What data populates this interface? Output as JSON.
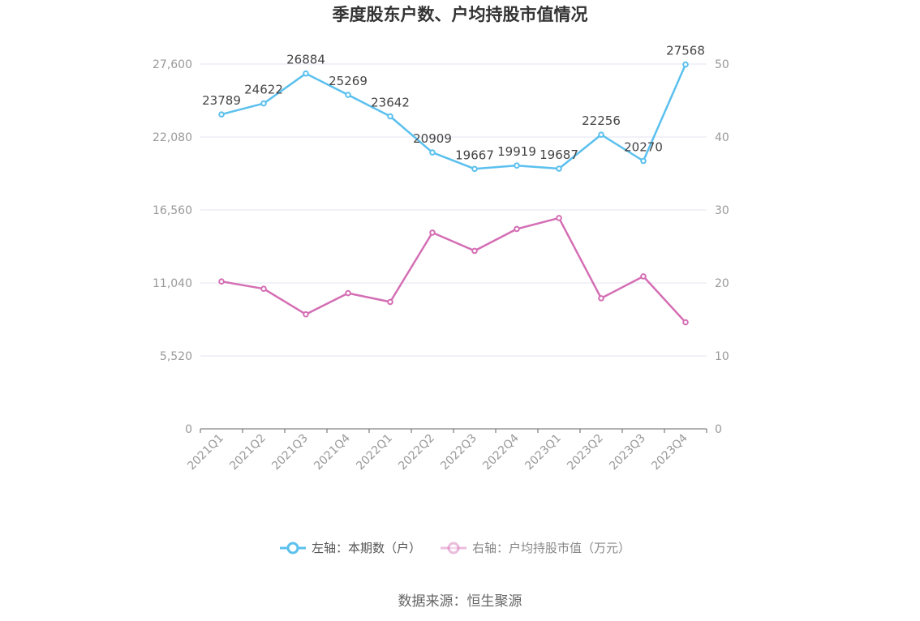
{
  "chart_data": {
    "type": "line",
    "title": "季度股东户数、户均持股市值情况",
    "categories": [
      "2021Q1",
      "2021Q2",
      "2021Q3",
      "2021Q4",
      "2022Q1",
      "2022Q2",
      "2022Q3",
      "2022Q4",
      "2023Q1",
      "2023Q2",
      "2023Q3",
      "2023Q4"
    ],
    "series": [
      {
        "name": "左轴：本期数（户）",
        "axis": "left",
        "color": "#5bc0ee",
        "values": [
          23789,
          24622,
          26884,
          25269,
          23642,
          20909,
          19667,
          19919,
          19687,
          22256,
          20270,
          27568
        ],
        "data_labels": [
          "23789",
          "24622",
          "26884",
          "25269",
          "23642",
          "20909",
          "19667",
          "19919",
          "19687",
          "22256",
          "20270",
          "27568"
        ]
      },
      {
        "name": "右轴：户均持股市值（万元）",
        "axis": "right",
        "color": "#d46eb4",
        "values": [
          20.2,
          19.2,
          15.7,
          18.6,
          17.4,
          26.9,
          24.4,
          27.4,
          28.9,
          17.9,
          20.9,
          14.6
        ]
      }
    ],
    "left_axis": {
      "ylim": [
        0,
        27600
      ],
      "ticks": [
        0,
        5520,
        11040,
        16560,
        22080,
        27600
      ],
      "tick_labels": [
        "0",
        "5,520",
        "11,040",
        "16,560",
        "22,080",
        "27,600"
      ]
    },
    "right_axis": {
      "ylim": [
        0,
        50
      ],
      "ticks": [
        0,
        10,
        20,
        30,
        40,
        50
      ],
      "tick_labels": [
        "0",
        "10",
        "20",
        "30",
        "40",
        "50"
      ]
    },
    "grid": true,
    "legend_position": "bottom-center",
    "colors": {
      "grid": "#e3e6f0",
      "axis": "#666666",
      "tick_text": "#999999"
    }
  },
  "source": "数据来源：恒生聚源"
}
